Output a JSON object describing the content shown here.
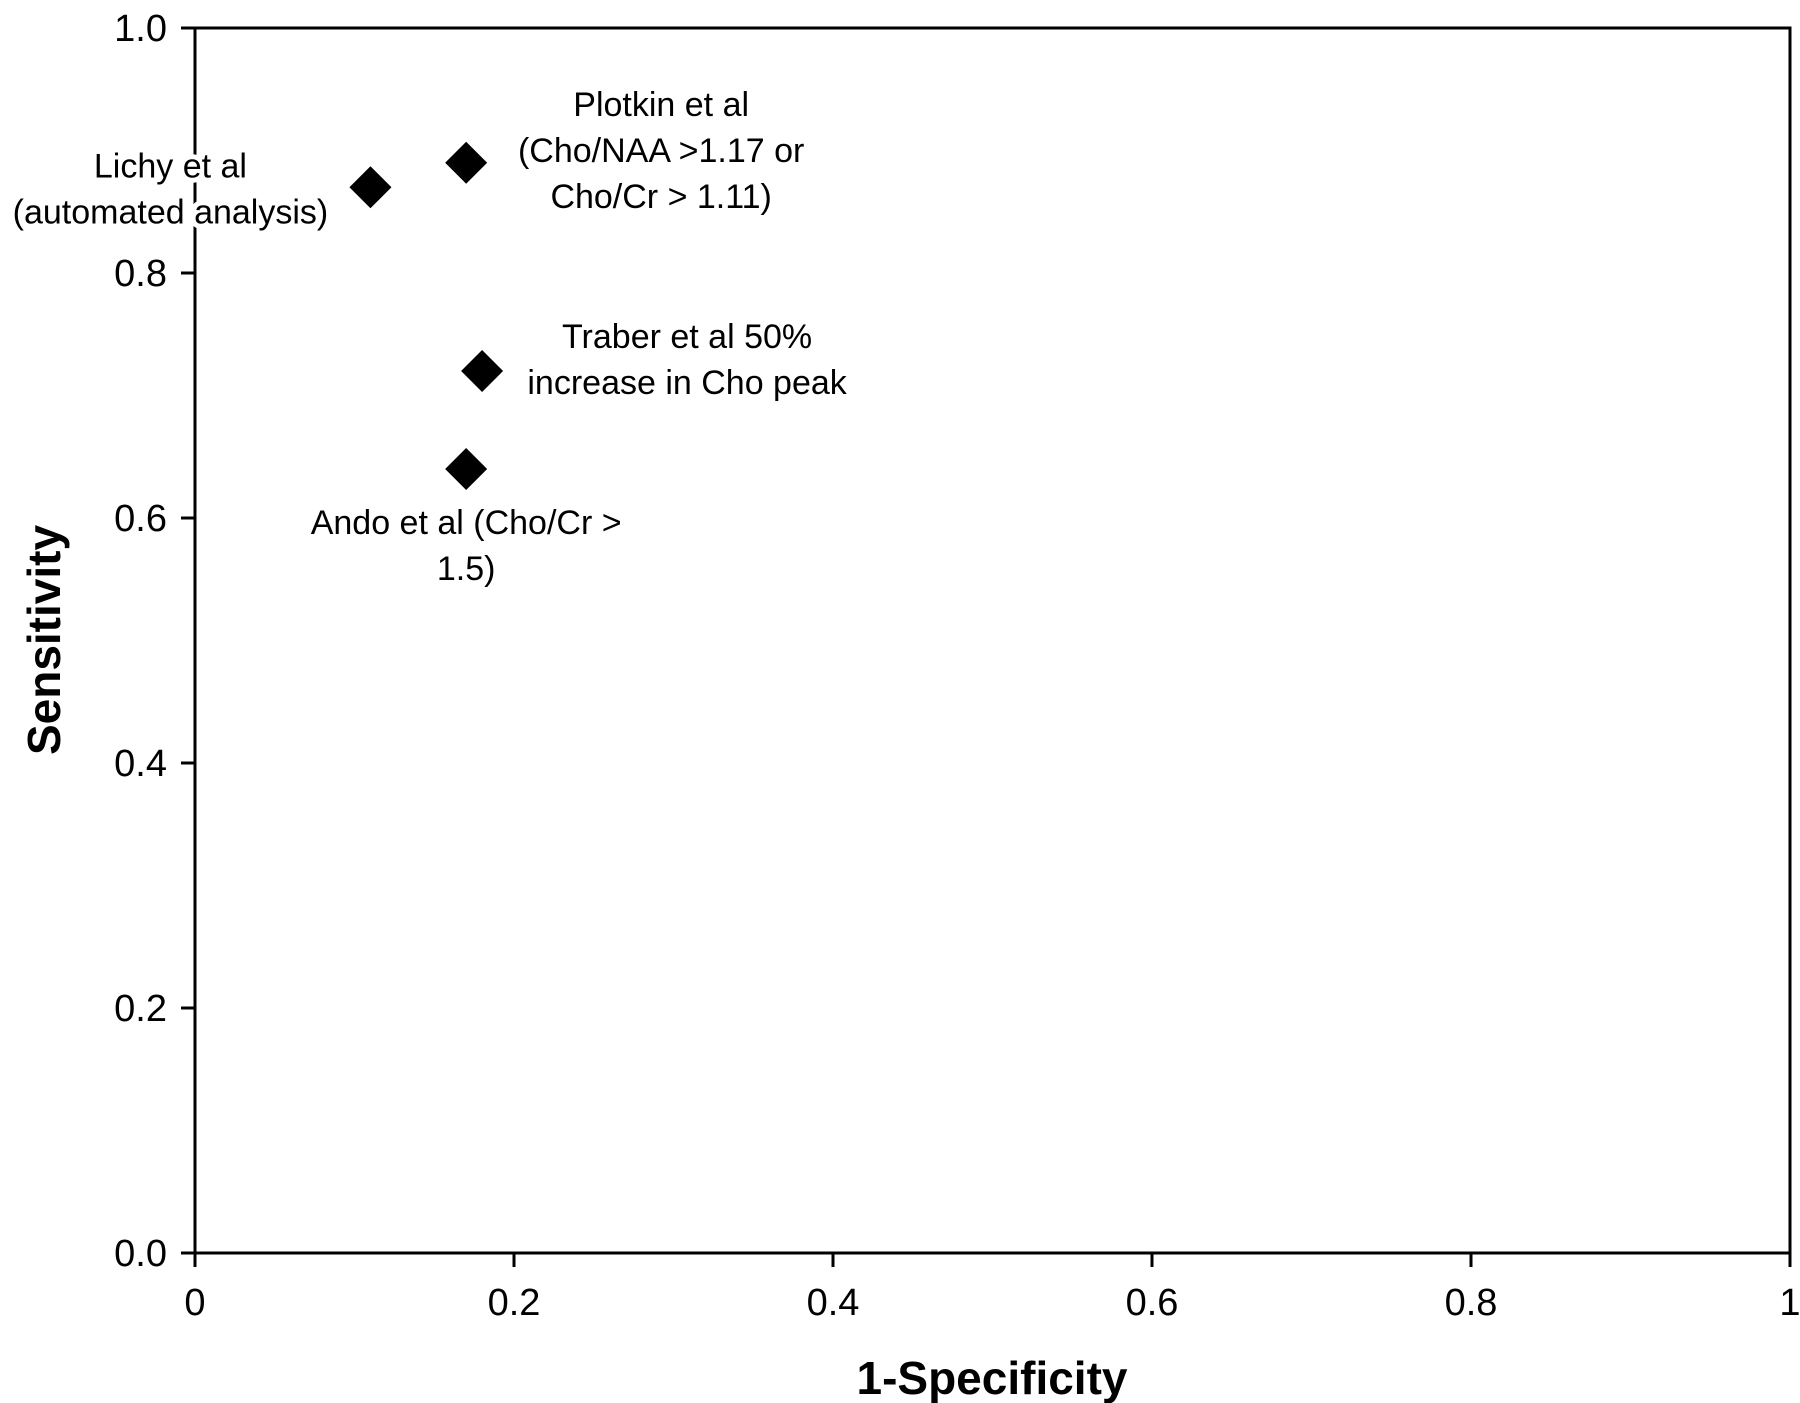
{
  "chart_data": {
    "type": "scatter",
    "xlabel": "1-Specificity",
    "ylabel": "Sensitivity",
    "xlim": [
      0,
      1
    ],
    "ylim": [
      0,
      1
    ],
    "x_ticks": [
      "0",
      "0.2",
      "0.4",
      "0.6",
      "0.8",
      "1"
    ],
    "y_ticks": [
      "0.0",
      "0.2",
      "0.4",
      "0.6",
      "0.8",
      "1.0"
    ],
    "grid": false,
    "marker": "diamond",
    "marker_color": "#000000",
    "points": [
      {
        "x": 0.11,
        "y": 0.87,
        "label": [
          "Lichy et al",
          "(automated analysis)"
        ]
      },
      {
        "x": 0.17,
        "y": 0.89,
        "label": [
          "Plotkin et al",
          "(Cho/NAA >1.17 or",
          "Cho/Cr > 1.11)"
        ]
      },
      {
        "x": 0.18,
        "y": 0.72,
        "label": [
          "Traber et al 50%",
          "increase in Cho peak"
        ]
      },
      {
        "x": 0.17,
        "y": 0.64,
        "label": [
          "Ando et al (Cho/Cr >",
          "1.5)"
        ]
      }
    ]
  }
}
